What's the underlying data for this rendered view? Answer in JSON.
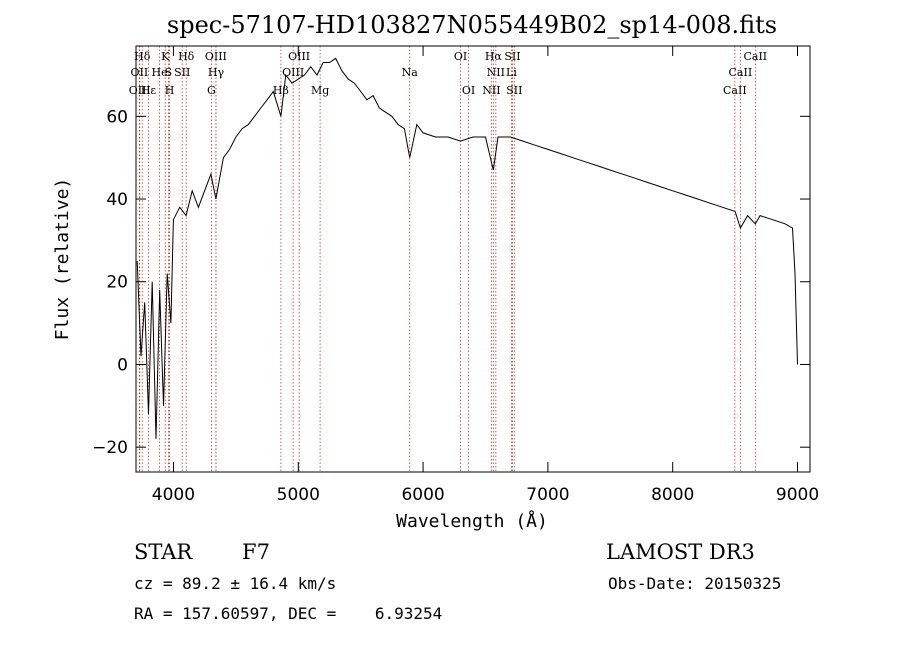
{
  "chart_data": {
    "type": "line",
    "title": "spec-57107-HD103827N055449B02_sp14-008.fits",
    "xlabel": "Wavelength (Å)",
    "ylabel": "Flux (relative)",
    "xlim": [
      3700,
      9100
    ],
    "ylim": [
      -26,
      77
    ],
    "xticks": [
      4000,
      5000,
      6000,
      7000,
      8000,
      9000
    ],
    "yticks": [
      -20,
      0,
      20,
      40,
      60
    ],
    "series": [
      {
        "name": "flux",
        "x": [
          3710,
          3740,
          3770,
          3800,
          3830,
          3860,
          3890,
          3920,
          3950,
          3980,
          4000,
          4050,
          4101,
          4150,
          4200,
          4250,
          4300,
          4340,
          4400,
          4450,
          4500,
          4550,
          4600,
          4650,
          4700,
          4750,
          4800,
          4861,
          4900,
          4950,
          5000,
          5050,
          5100,
          5150,
          5200,
          5250,
          5300,
          5350,
          5400,
          5450,
          5500,
          5550,
          5600,
          5650,
          5700,
          5750,
          5800,
          5850,
          5893,
          5950,
          6000,
          6100,
          6200,
          6300,
          6400,
          6500,
          6563,
          6600,
          6700,
          6800,
          6900,
          7000,
          7100,
          7200,
          7300,
          7400,
          7500,
          7600,
          7700,
          7800,
          7900,
          8000,
          8100,
          8200,
          8300,
          8400,
          8500,
          8542,
          8600,
          8662,
          8700,
          8800,
          8900,
          8960,
          8980,
          9000
        ],
        "y": [
          25,
          2,
          15,
          -12,
          20,
          -18,
          18,
          -10,
          22,
          10,
          35,
          38,
          36,
          42,
          38,
          42,
          46,
          40,
          50,
          52,
          55,
          57,
          58,
          60,
          62,
          64,
          66,
          60,
          70,
          68,
          69,
          70,
          72,
          70,
          73,
          73,
          74,
          71,
          69,
          68,
          66,
          64,
          65,
          62,
          61,
          60,
          58,
          57,
          50,
          58,
          56,
          55,
          55,
          54,
          55,
          55,
          47,
          55,
          55,
          54,
          53,
          52,
          51,
          50,
          49,
          48,
          47,
          46,
          45,
          44,
          43,
          42,
          41,
          40,
          39,
          38,
          37,
          33,
          36,
          34,
          36,
          35,
          34,
          33,
          22,
          0
        ]
      }
    ],
    "lines": [
      {
        "label": "Hδ",
        "x": 3750,
        "row": 0
      },
      {
        "label": "OII",
        "x": 3727,
        "row": 1
      },
      {
        "label": "OIII",
        "x": 3730,
        "row": 2
      },
      {
        "label": "K",
        "x": 3934,
        "row": 0
      },
      {
        "label": "He",
        "x": 3889,
        "row": 1
      },
      {
        "label": "Hε",
        "x": 3800,
        "row": 2
      },
      {
        "label": "S",
        "x": 3960,
        "row": 1
      },
      {
        "label": "H",
        "x": 3969,
        "row": 2
      },
      {
        "label": "Hδ",
        "x": 4102,
        "row": 0
      },
      {
        "label": "SII",
        "x": 4070,
        "row": 1
      },
      {
        "label": "OIII",
        "x": 4340,
        "row": 0
      },
      {
        "label": "Hγ",
        "x": 4341,
        "row": 1
      },
      {
        "label": "G",
        "x": 4304,
        "row": 2
      },
      {
        "label": "OIII",
        "x": 5007,
        "row": 0
      },
      {
        "label": "OIII",
        "x": 4959,
        "row": 1
      },
      {
        "label": "Hβ",
        "x": 4861,
        "row": 2
      },
      {
        "label": "Mg",
        "x": 5175,
        "row": 2
      },
      {
        "label": "Na",
        "x": 5893,
        "row": 1
      },
      {
        "label": "OI",
        "x": 6300,
        "row": 0
      },
      {
        "label": "OI",
        "x": 6364,
        "row": 2
      },
      {
        "label": "Hα",
        "x": 6563,
        "row": 0
      },
      {
        "label": "SII",
        "x": 6716,
        "row": 0
      },
      {
        "label": "NII",
        "x": 6583,
        "row": 1
      },
      {
        "label": "Li",
        "x": 6708,
        "row": 1
      },
      {
        "label": "NII",
        "x": 6548,
        "row": 2
      },
      {
        "label": "SII",
        "x": 6731,
        "row": 2
      },
      {
        "label": "CaII",
        "x": 8662,
        "row": 0
      },
      {
        "label": "CaII",
        "x": 8542,
        "row": 1
      },
      {
        "label": "CaII",
        "x": 8498,
        "row": 2
      }
    ]
  },
  "info": {
    "class": "STAR",
    "subclass": "F7",
    "survey": "LAMOST DR3",
    "cz": "cz = 89.2 ± 16.4 km/s",
    "obs_date": "Obs-Date: 20150325",
    "radec": "RA = 157.60597, DEC =    6.93254"
  }
}
